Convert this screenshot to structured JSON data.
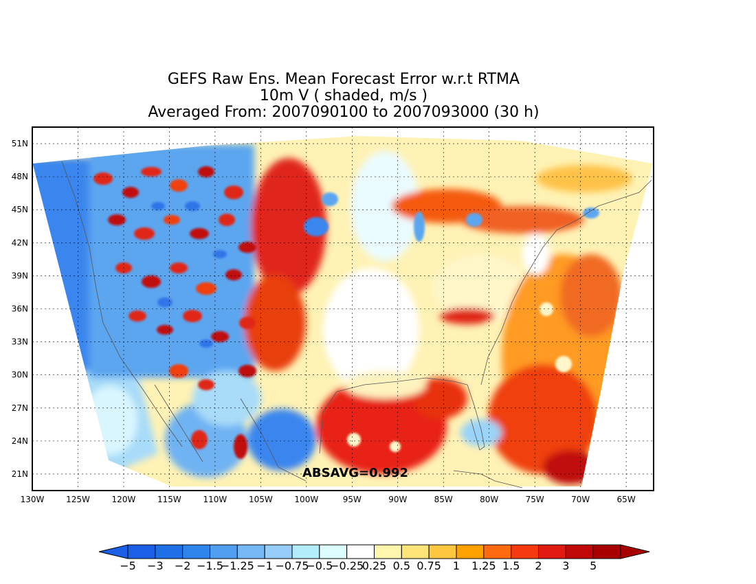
{
  "titles": {
    "line1": "GEFS Raw Ens. Mean Forecast Error w.r.t RTMA",
    "line2": "10m V ( shaded, m/s )",
    "line3": "Averaged From: 2007090100 to 2007093000 (30 h)"
  },
  "map": {
    "lat_labels": [
      "51N",
      "48N",
      "45N",
      "42N",
      "39N",
      "36N",
      "33N",
      "30N",
      "27N",
      "24N",
      "21N"
    ],
    "lon_labels": [
      "130W",
      "125W",
      "120W",
      "115W",
      "110W",
      "105W",
      "100W",
      "95W",
      "90W",
      "85W",
      "80W",
      "75W",
      "70W",
      "65W"
    ],
    "lat_range": [
      19.5,
      52.5
    ],
    "lon_range": [
      -130,
      -62
    ],
    "gridlines": true
  },
  "annotation": {
    "absavg": "ABSAVG=0.992"
  },
  "colorbar": {
    "labels": [
      "-5",
      "-3",
      "-2",
      "-1.5",
      "-1.25",
      "-1",
      "-0.75",
      "-0.5",
      "-0.25",
      "0.25",
      "0.5",
      "0.75",
      "1",
      "1.25",
      "1.5",
      "2",
      "3",
      "5"
    ],
    "colors": [
      "#1a5fe6",
      "#1f6fe6",
      "#2f85ec",
      "#4f9ef0",
      "#75b8f5",
      "#96cdf9",
      "#b3ecfb",
      "#dcfdfe",
      "#ffffff",
      "#fff6ad",
      "#ffe47a",
      "#ffc640",
      "#ffa100",
      "#ff6a10",
      "#f63a10",
      "#e01a10",
      "#c00808",
      "#a80000"
    ],
    "low_color": "#1a5fe6",
    "high_color": "#a80000"
  }
}
